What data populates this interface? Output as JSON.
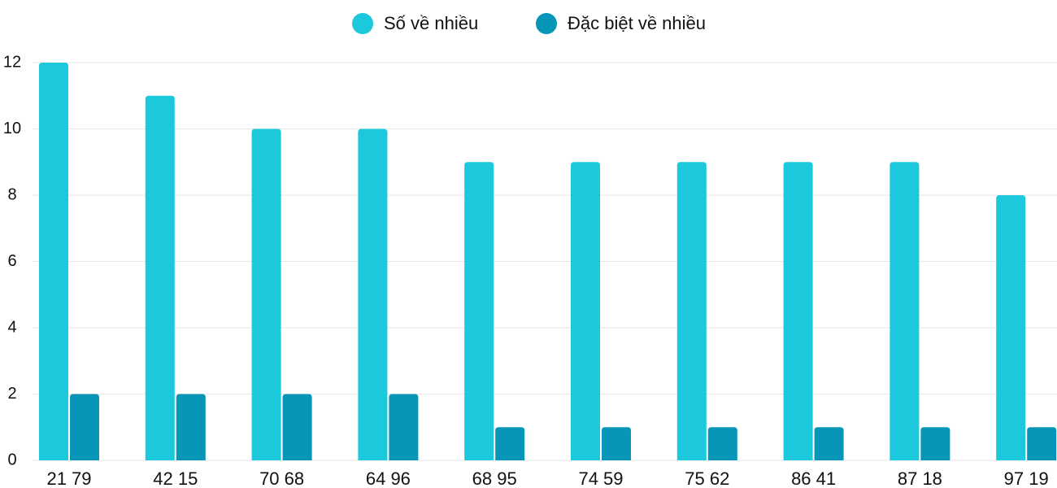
{
  "chart_data": {
    "type": "bar",
    "categories": [
      "21 79",
      "42 15",
      "70 68",
      "64 96",
      "68 95",
      "74 59",
      "75 62",
      "86 41",
      "87 18",
      "97 19"
    ],
    "series": [
      {
        "name": "Số về nhiều",
        "color": "#1bc8dc",
        "values": [
          12,
          11,
          10,
          10,
          9,
          9,
          9,
          9,
          9,
          8
        ]
      },
      {
        "name": "Đặc biệt về nhiều",
        "color": "#0795b8",
        "values": [
          2,
          2,
          2,
          2,
          1,
          1,
          1,
          1,
          1,
          1
        ]
      }
    ],
    "ylim": [
      0,
      12
    ],
    "yticks": [
      0,
      2,
      4,
      6,
      8,
      10,
      12
    ],
    "grid": true,
    "legend": "top"
  }
}
